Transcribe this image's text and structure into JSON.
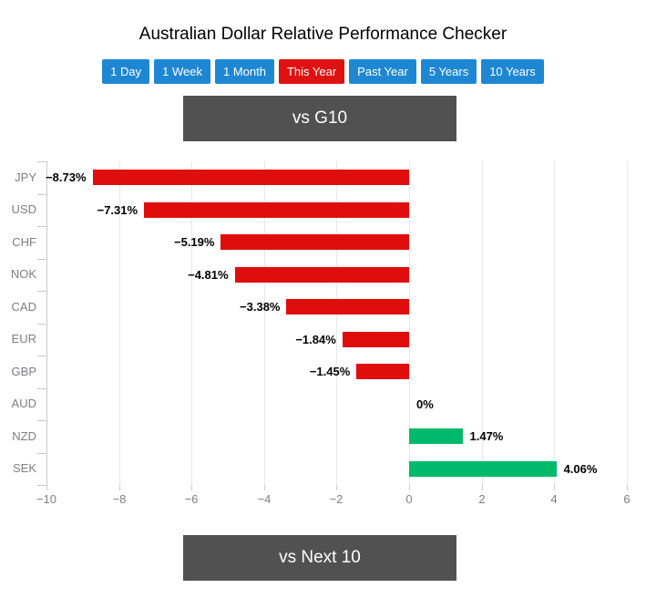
{
  "title": "Australian Dollar Relative Performance Checker",
  "periods": {
    "options": [
      "1 Day",
      "1 Week",
      "1 Month",
      "This Year",
      "Past Year",
      "5 Years",
      "10 Years"
    ],
    "selected": "This Year"
  },
  "sections": {
    "g10_label": "vs G10",
    "next10_label": "vs Next 10"
  },
  "chart_data": {
    "type": "bar",
    "orientation": "horizontal",
    "title": "",
    "categories": [
      "JPY",
      "USD",
      "CHF",
      "NOK",
      "CAD",
      "EUR",
      "GBP",
      "AUD",
      "NZD",
      "SEK"
    ],
    "values": [
      -8.73,
      -7.31,
      -5.19,
      -4.81,
      -3.38,
      -1.84,
      -1.45,
      0,
      1.47,
      4.06
    ],
    "value_labels": [
      "−8.73%",
      "−7.31%",
      "−5.19%",
      "−4.81%",
      "−3.38%",
      "−1.84%",
      "−1.45%",
      "0%",
      "1.47%",
      "4.06%"
    ],
    "xlim": [
      -10,
      6
    ],
    "x_ticks": [
      -10,
      -8,
      -6,
      -4,
      -2,
      0,
      2,
      4,
      6
    ],
    "x_tick_labels": [
      "−10",
      "−8",
      "−6",
      "−4",
      "−2",
      "0",
      "2",
      "4",
      "6"
    ],
    "grid": true,
    "legend": "none",
    "negative_color": "#e00d0d",
    "positive_color": "#00b96b"
  },
  "colors": {
    "button_blue": "#1e87d3",
    "button_selected_red": "#e01111",
    "band_gray": "#515151",
    "axis_label_gray": "#7d7d85",
    "gridline": "#e7e7ea",
    "tick": "#c9c9d2"
  }
}
